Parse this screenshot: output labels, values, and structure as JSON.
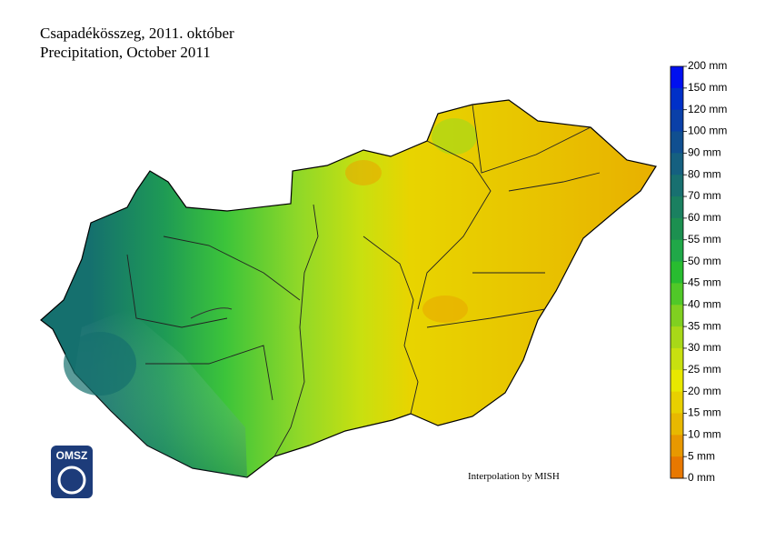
{
  "header": {
    "title": "Csapadékösszeg, 2011. október",
    "subtitle": "Precipitation, October 2011"
  },
  "legend": {
    "labels": [
      "200 mm",
      "150 mm",
      "120 mm",
      "100 mm",
      "90 mm",
      "80 mm",
      "70 mm",
      "60 mm",
      "55 mm",
      "50 mm",
      "45 mm",
      "40 mm",
      "35 mm",
      "30 mm",
      "25 mm",
      "20 mm",
      "15 mm",
      "10 mm",
      "5 mm",
      "0 mm"
    ],
    "colors": [
      "#0010f0",
      "#0030c8",
      "#0a40a8",
      "#104f90",
      "#156080",
      "#187070",
      "#1a8060",
      "#1c9050",
      "#20a848",
      "#28bc30",
      "#50c828",
      "#80d020",
      "#a8d818",
      "#c8e010",
      "#e8e800",
      "#e8d000",
      "#e8b800",
      "#e89800",
      "#e87800"
    ]
  },
  "credit": "Interpolation by MISH",
  "logo": "OMSZ"
}
